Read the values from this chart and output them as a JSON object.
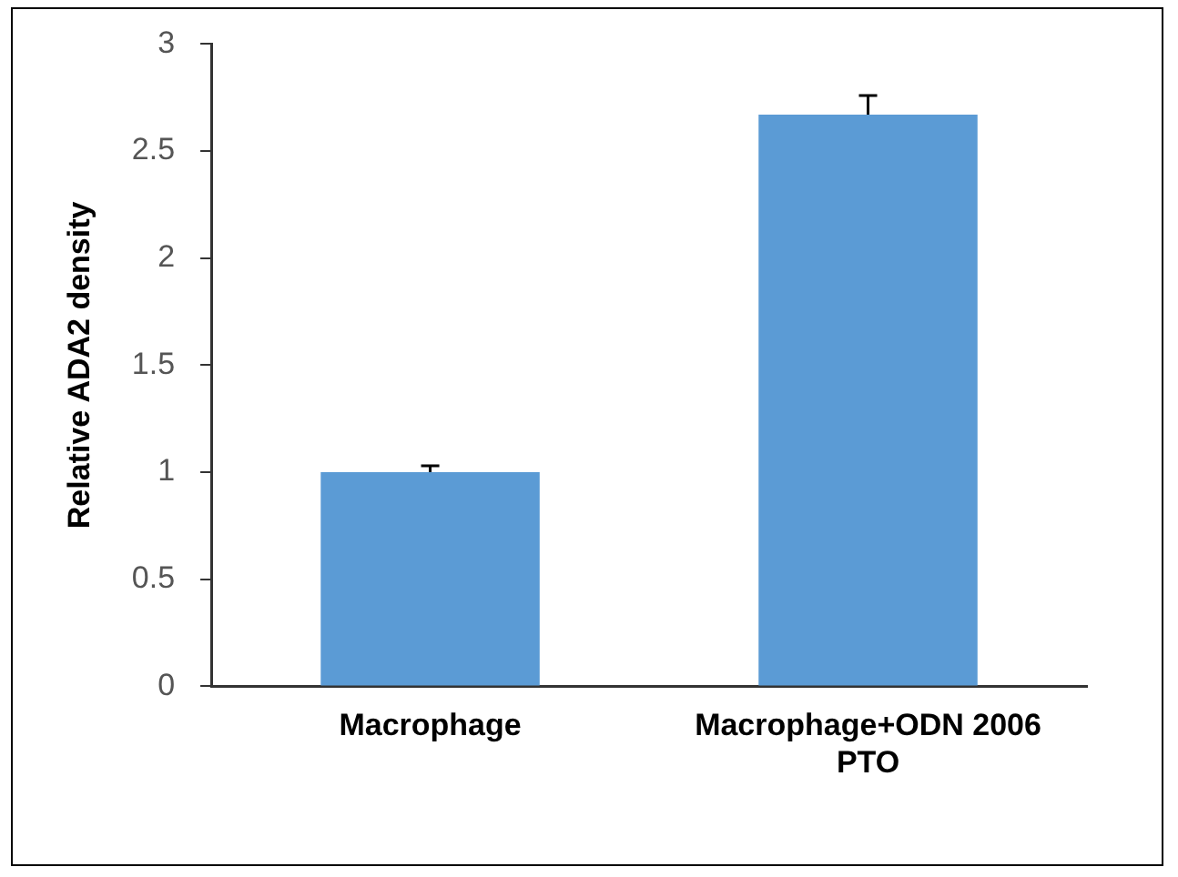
{
  "chart_data": {
    "type": "bar",
    "ylabel": "Relative ADA2 density",
    "categories": [
      "Macrophage",
      "Macrophage+ODN 2006 PTO"
    ],
    "series": [
      {
        "color": "#5b9bd5",
        "values": [
          1.0,
          2.67
        ],
        "errors": [
          0.03,
          0.09
        ]
      }
    ],
    "ylim": [
      0,
      3
    ],
    "yticks": [
      0,
      0.5,
      1,
      1.5,
      2,
      2.5,
      3
    ],
    "grid": false,
    "legend": false
  }
}
